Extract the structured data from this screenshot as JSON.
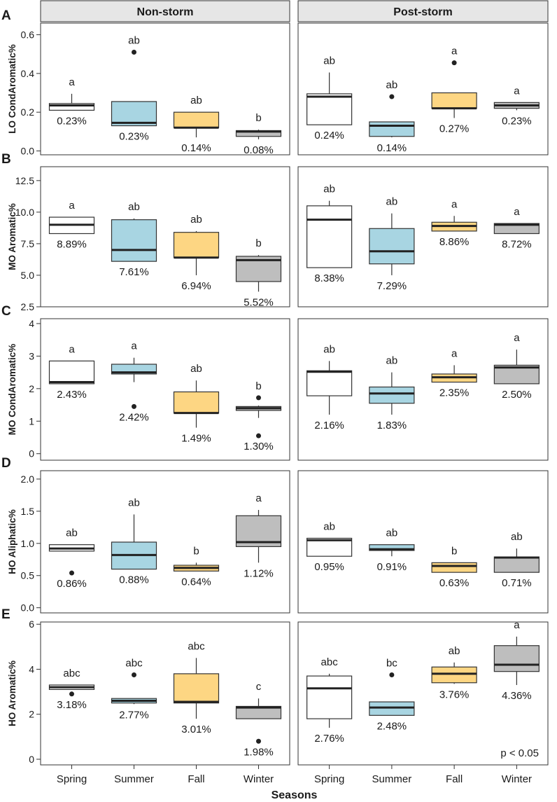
{
  "chart_data": {
    "type": "boxplot",
    "facets": [
      "Non-storm",
      "Post-storm"
    ],
    "categories": [
      "Spring",
      "Summer",
      "Fall",
      "Winter"
    ],
    "xlabel": "Seasons",
    "note": "p < 0.05",
    "colors": {
      "Spring": "#ffffff",
      "Summer": "#a8d5e2",
      "Fall": "#fdd683",
      "Winter": "#bebebe"
    },
    "panels": [
      {
        "label": "A",
        "ylabel": "LO CondAromatic%",
        "ylim": [
          -0.02,
          0.66
        ],
        "yticks": [
          0.0,
          0.2,
          0.4,
          0.6
        ],
        "ytick_labels": [
          "0.0",
          "0.2",
          "0.4",
          "0.6"
        ],
        "groups": [
          [
            {
              "season": "Spring",
              "wlo": 0.21,
              "q1": 0.21,
              "med": 0.235,
              "q3": 0.245,
              "whi": 0.295,
              "outliers": [],
              "letter": "a",
              "mean": "0.23%"
            },
            {
              "season": "Summer",
              "wlo": 0.13,
              "q1": 0.13,
              "med": 0.145,
              "q3": 0.255,
              "whi": 0.255,
              "outliers": [
                0.51
              ],
              "letter": "ab",
              "mean": "0.23%"
            },
            {
              "season": "Fall",
              "wlo": 0.07,
              "q1": 0.12,
              "med": 0.12,
              "q3": 0.2,
              "whi": 0.2,
              "outliers": [],
              "letter": "ab",
              "mean": "0.14%"
            },
            {
              "season": "Winter",
              "wlo": 0.06,
              "q1": 0.075,
              "med": 0.1,
              "q3": 0.105,
              "whi": 0.11,
              "outliers": [],
              "letter": "b",
              "mean": "0.08%"
            }
          ],
          [
            {
              "season": "Spring",
              "wlo": 0.135,
              "q1": 0.135,
              "med": 0.28,
              "q3": 0.295,
              "whi": 0.405,
              "outliers": [],
              "letter": "ab",
              "mean": "0.24%"
            },
            {
              "season": "Summer",
              "wlo": 0.07,
              "q1": 0.075,
              "med": 0.13,
              "q3": 0.15,
              "whi": 0.15,
              "outliers": [
                0.28
              ],
              "letter": "ab",
              "mean": "0.14%"
            },
            {
              "season": "Fall",
              "wlo": 0.17,
              "q1": 0.22,
              "med": 0.22,
              "q3": 0.3,
              "whi": 0.3,
              "outliers": [
                0.455
              ],
              "letter": "a",
              "mean": "0.27%"
            },
            {
              "season": "Winter",
              "wlo": 0.21,
              "q1": 0.22,
              "med": 0.235,
              "q3": 0.25,
              "whi": 0.25,
              "outliers": [],
              "letter": "a",
              "mean": "0.23%"
            }
          ]
        ]
      },
      {
        "label": "B",
        "ylabel": "MO Aromatic%",
        "ylim": [
          2.5,
          13.6
        ],
        "yticks": [
          2.5,
          5.0,
          7.5,
          10.0,
          12.5
        ],
        "ytick_labels": [
          "2.5",
          "5.0",
          "7.5",
          "10.0",
          "12.5"
        ],
        "groups": [
          [
            {
              "season": "Spring",
              "wlo": 8.3,
              "q1": 8.3,
              "med": 9.0,
              "q3": 9.6,
              "whi": 9.6,
              "outliers": [],
              "letter": "a",
              "mean": "8.89%"
            },
            {
              "season": "Summer",
              "wlo": 6.1,
              "q1": 6.1,
              "med": 7.0,
              "q3": 9.4,
              "whi": 9.5,
              "outliers": [],
              "letter": "ab",
              "mean": "7.61%"
            },
            {
              "season": "Fall",
              "wlo": 5.0,
              "q1": 6.4,
              "med": 6.4,
              "q3": 8.4,
              "whi": 8.5,
              "outliers": [],
              "letter": "ab",
              "mean": "6.94%"
            },
            {
              "season": "Winter",
              "wlo": 3.7,
              "q1": 4.5,
              "med": 6.2,
              "q3": 6.5,
              "whi": 6.6,
              "outliers": [],
              "letter": "b",
              "mean": "5.52%"
            }
          ],
          [
            {
              "season": "Spring",
              "wlo": 5.6,
              "q1": 5.6,
              "med": 9.4,
              "q3": 10.5,
              "whi": 10.9,
              "outliers": [],
              "letter": "ab",
              "mean": "8.38%"
            },
            {
              "season": "Summer",
              "wlo": 5.0,
              "q1": 5.9,
              "med": 6.9,
              "q3": 8.7,
              "whi": 9.9,
              "outliers": [],
              "letter": "ab",
              "mean": "7.29%"
            },
            {
              "season": "Fall",
              "wlo": 8.5,
              "q1": 8.5,
              "med": 8.9,
              "q3": 9.2,
              "whi": 9.7,
              "outliers": [],
              "letter": "a",
              "mean": "8.86%"
            },
            {
              "season": "Winter",
              "wlo": 8.3,
              "q1": 8.3,
              "med": 9.0,
              "q3": 9.1,
              "whi": 9.1,
              "outliers": [],
              "letter": "a",
              "mean": "8.72%"
            }
          ]
        ]
      },
      {
        "label": "C",
        "ylabel": "MO CondAromatic%",
        "ylim": [
          -0.2,
          4.15
        ],
        "yticks": [
          0,
          1,
          2,
          3,
          4
        ],
        "ytick_labels": [
          "0",
          "1",
          "2",
          "3",
          "4"
        ],
        "groups": [
          [
            {
              "season": "Spring",
              "wlo": 2.15,
              "q1": 2.15,
              "med": 2.2,
              "q3": 2.85,
              "whi": 2.85,
              "outliers": [],
              "letter": "a",
              "mean": "2.43%"
            },
            {
              "season": "Summer",
              "wlo": 2.2,
              "q1": 2.45,
              "med": 2.5,
              "q3": 2.75,
              "whi": 2.95,
              "outliers": [
                1.45
              ],
              "letter": "a",
              "mean": "2.42%"
            },
            {
              "season": "Fall",
              "wlo": 0.8,
              "q1": 1.25,
              "med": 1.25,
              "q3": 1.9,
              "whi": 2.25,
              "outliers": [],
              "letter": "ab",
              "mean": "1.49%"
            },
            {
              "season": "Winter",
              "wlo": 1.1,
              "q1": 1.33,
              "med": 1.4,
              "q3": 1.45,
              "whi": 1.48,
              "outliers": [
                0.55,
                1.72
              ],
              "letter": "b",
              "mean": "1.30%"
            }
          ],
          [
            {
              "season": "Spring",
              "wlo": 1.2,
              "q1": 1.78,
              "med": 2.52,
              "q3": 2.55,
              "whi": 2.85,
              "outliers": [],
              "letter": "ab",
              "mean": "2.16%"
            },
            {
              "season": "Summer",
              "wlo": 1.2,
              "q1": 1.55,
              "med": 1.85,
              "q3": 2.05,
              "whi": 2.5,
              "outliers": [],
              "letter": "ab",
              "mean": "1.83%"
            },
            {
              "season": "Fall",
              "wlo": 2.2,
              "q1": 2.2,
              "med": 2.35,
              "q3": 2.45,
              "whi": 2.72,
              "outliers": [],
              "letter": "a",
              "mean": "2.35%"
            },
            {
              "season": "Winter",
              "wlo": 2.15,
              "q1": 2.15,
              "med": 2.65,
              "q3": 2.72,
              "whi": 3.2,
              "outliers": [],
              "letter": "a",
              "mean": "2.50%"
            }
          ]
        ]
      },
      {
        "label": "D",
        "ylabel": "HO Aliphatic%",
        "ylim": [
          -0.08,
          2.13
        ],
        "yticks": [
          0.0,
          0.5,
          1.0,
          1.5,
          2.0
        ],
        "ytick_labels": [
          "0.0",
          "0.5",
          "1.0",
          "1.5",
          "2.0"
        ],
        "groups": [
          [
            {
              "season": "Spring",
              "wlo": 0.88,
              "q1": 0.88,
              "med": 0.92,
              "q3": 0.98,
              "whi": 0.98,
              "outliers": [
                0.54
              ],
              "letter": "ab",
              "mean": "0.86%"
            },
            {
              "season": "Summer",
              "wlo": 0.6,
              "q1": 0.6,
              "med": 0.82,
              "q3": 1.02,
              "whi": 1.45,
              "outliers": [],
              "letter": "ab",
              "mean": "0.88%"
            },
            {
              "season": "Fall",
              "wlo": 0.57,
              "q1": 0.57,
              "med": 0.62,
              "q3": 0.66,
              "whi": 0.7,
              "outliers": [],
              "letter": "b",
              "mean": "0.64%"
            },
            {
              "season": "Winter",
              "wlo": 0.7,
              "q1": 0.95,
              "med": 1.02,
              "q3": 1.43,
              "whi": 1.52,
              "outliers": [],
              "letter": "a",
              "mean": "1.12%"
            }
          ],
          [
            {
              "season": "Spring",
              "wlo": 0.8,
              "q1": 0.8,
              "med": 1.05,
              "q3": 1.08,
              "whi": 1.08,
              "outliers": [],
              "letter": "ab",
              "mean": "0.95%"
            },
            {
              "season": "Summer",
              "wlo": 0.8,
              "q1": 0.89,
              "med": 0.91,
              "q3": 0.98,
              "whi": 0.98,
              "outliers": [],
              "letter": "ab",
              "mean": "0.91%"
            },
            {
              "season": "Fall",
              "wlo": 0.55,
              "q1": 0.55,
              "med": 0.65,
              "q3": 0.7,
              "whi": 0.7,
              "outliers": [],
              "letter": "b",
              "mean": "0.63%"
            },
            {
              "season": "Winter",
              "wlo": 0.55,
              "q1": 0.55,
              "med": 0.78,
              "q3": 0.79,
              "whi": 0.92,
              "outliers": [],
              "letter": "ab",
              "mean": "0.71%"
            }
          ]
        ]
      },
      {
        "label": "E",
        "ylabel": "HO Aromatic%",
        "ylim": [
          -0.25,
          6.1
        ],
        "yticks": [
          0,
          2,
          4,
          6
        ],
        "ytick_labels": [
          "0",
          "2",
          "4",
          "6"
        ],
        "groups": [
          [
            {
              "season": "Spring",
              "wlo": 3.1,
              "q1": 3.1,
              "med": 3.2,
              "q3": 3.3,
              "whi": 3.3,
              "outliers": [
                2.9
              ],
              "letter": "abc",
              "mean": "3.18%"
            },
            {
              "season": "Summer",
              "wlo": 2.45,
              "q1": 2.5,
              "med": 2.6,
              "q3": 2.7,
              "whi": 2.7,
              "outliers": [
                3.75
              ],
              "letter": "abc",
              "mean": "2.77%"
            },
            {
              "season": "Fall",
              "wlo": 1.8,
              "q1": 2.5,
              "med": 2.55,
              "q3": 3.8,
              "whi": 4.5,
              "outliers": [],
              "letter": "abc",
              "mean": "3.01%"
            },
            {
              "season": "Winter",
              "wlo": 1.8,
              "q1": 1.8,
              "med": 2.3,
              "q3": 2.35,
              "whi": 2.7,
              "outliers": [
                0.8
              ],
              "letter": "c",
              "mean": "1.98%"
            }
          ],
          [
            {
              "season": "Spring",
              "wlo": 1.4,
              "q1": 1.8,
              "med": 3.15,
              "q3": 3.7,
              "whi": 3.8,
              "outliers": [],
              "letter": "abc",
              "mean": "2.76%"
            },
            {
              "season": "Summer",
              "wlo": 1.95,
              "q1": 1.95,
              "med": 2.3,
              "q3": 2.55,
              "whi": 2.55,
              "outliers": [
                3.75
              ],
              "letter": "bc",
              "mean": "2.48%"
            },
            {
              "season": "Fall",
              "wlo": 3.35,
              "q1": 3.4,
              "med": 3.8,
              "q3": 4.1,
              "whi": 4.3,
              "outliers": [],
              "letter": "ab",
              "mean": "3.76%"
            },
            {
              "season": "Winter",
              "wlo": 3.3,
              "q1": 3.9,
              "med": 4.2,
              "q3": 5.05,
              "whi": 5.45,
              "outliers": [],
              "letter": "a",
              "mean": "4.36%"
            }
          ]
        ]
      }
    ]
  }
}
